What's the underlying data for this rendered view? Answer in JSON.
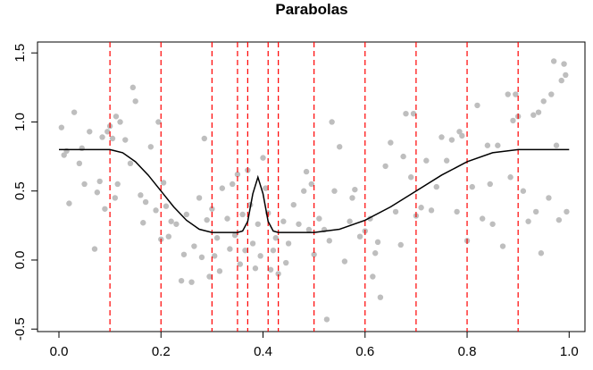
{
  "chart_data": {
    "type": "scatter",
    "title": "Parabolas",
    "xlim": [
      -0.042,
      1.031
    ],
    "ylim": [
      -0.518,
      1.579
    ],
    "xticks": [
      {
        "value": 0,
        "label": "0.0"
      },
      {
        "value": 0.2,
        "label": "0.2"
      },
      {
        "value": 0.4,
        "label": "0.4"
      },
      {
        "value": 0.6,
        "label": "0.6"
      },
      {
        "value": 0.8,
        "label": "0.8"
      },
      {
        "value": 1,
        "label": "1.0"
      }
    ],
    "yticks": [
      -0.5,
      {
        "value": 0,
        "label": "0.0"
      },
      0.5,
      {
        "value": 1,
        "label": "1.0"
      },
      1.5
    ],
    "vlines": {
      "x": [
        0.1,
        0.2,
        0.3,
        0.35,
        0.37,
        0.41,
        0.43,
        0.5,
        0.6,
        0.7,
        0.8,
        0.9
      ],
      "color": "#ff0000"
    },
    "series": [
      {
        "kind": "points",
        "color": "#bebebe",
        "x": [
          0.005,
          0.01,
          0.015,
          0.02,
          0.03,
          0.04,
          0.045,
          0.05,
          0.06,
          0.07,
          0.075,
          0.08,
          0.085,
          0.09,
          0.095,
          0.1,
          0.105,
          0.11,
          0.112,
          0.115,
          0.12,
          0.13,
          0.14,
          0.145,
          0.15,
          0.16,
          0.165,
          0.17,
          0.18,
          0.19,
          0.195,
          0.2,
          0.205,
          0.21,
          0.215,
          0.22,
          0.23,
          0.24,
          0.245,
          0.25,
          0.26,
          0.265,
          0.275,
          0.28,
          0.285,
          0.29,
          0.295,
          0.3,
          0.305,
          0.31,
          0.315,
          0.32,
          0.33,
          0.335,
          0.34,
          0.345,
          0.35,
          0.355,
          0.36,
          0.365,
          0.37,
          0.375,
          0.38,
          0.385,
          0.39,
          0.395,
          0.4,
          0.405,
          0.41,
          0.415,
          0.42,
          0.425,
          0.43,
          0.44,
          0.445,
          0.45,
          0.46,
          0.47,
          0.48,
          0.485,
          0.49,
          0.495,
          0.5,
          0.51,
          0.52,
          0.525,
          0.53,
          0.535,
          0.54,
          0.55,
          0.56,
          0.57,
          0.575,
          0.58,
          0.59,
          0.6,
          0.61,
          0.615,
          0.62,
          0.625,
          0.63,
          0.64,
          0.65,
          0.66,
          0.67,
          0.675,
          0.68,
          0.69,
          0.695,
          0.7,
          0.71,
          0.72,
          0.73,
          0.74,
          0.75,
          0.76,
          0.77,
          0.78,
          0.785,
          0.79,
          0.8,
          0.81,
          0.82,
          0.83,
          0.84,
          0.845,
          0.85,
          0.86,
          0.87,
          0.88,
          0.885,
          0.89,
          0.895,
          0.9,
          0.91,
          0.92,
          0.93,
          0.935,
          0.94,
          0.945,
          0.95,
          0.96,
          0.965,
          0.97,
          0.975,
          0.98,
          0.985,
          0.99,
          0.995,
          0.993
        ],
        "y": [
          0.96,
          0.76,
          0.79,
          0.41,
          1.07,
          0.7,
          0.81,
          0.55,
          0.93,
          0.08,
          0.49,
          0.57,
          0.89,
          0.37,
          0.93,
          0.97,
          0.88,
          0.45,
          1.04,
          0.55,
          1.0,
          0.87,
          0.7,
          1.25,
          1.15,
          0.47,
          0.27,
          0.42,
          0.82,
          0.36,
          1.0,
          0.15,
          0.56,
          0.39,
          0.17,
          0.28,
          0.26,
          -0.15,
          0.04,
          0.33,
          -0.16,
          0.1,
          0.45,
          0.02,
          0.88,
          0.29,
          -0.12,
          0.37,
          0.03,
          0.16,
          -0.08,
          0.52,
          0.3,
          0.08,
          0.55,
          0.18,
          0.62,
          -0.03,
          0.33,
          0.07,
          0.65,
          0.4,
          0.12,
          -0.06,
          0.26,
          0.03,
          0.74,
          0.52,
          0.34,
          -0.07,
          0.07,
          0.16,
          -0.1,
          0.28,
          -0.02,
          0.12,
          0.4,
          0.26,
          0.5,
          0.64,
          0.22,
          0.55,
          0.04,
          0.3,
          0.22,
          -0.43,
          0.14,
          1.0,
          0.5,
          0.82,
          -0.01,
          0.28,
          0.45,
          0.51,
          0.17,
          0.21,
          0.3,
          -0.12,
          0.05,
          0.13,
          -0.27,
          0.68,
          0.85,
          0.35,
          0.11,
          0.75,
          1.06,
          0.6,
          1.06,
          0.32,
          0.38,
          0.72,
          0.36,
          0.53,
          0.89,
          0.72,
          0.87,
          0.35,
          0.93,
          0.9,
          0.14,
          0.53,
          1.12,
          0.3,
          0.83,
          0.55,
          0.26,
          0.83,
          0.1,
          1.2,
          0.6,
          1.01,
          1.2,
          1.04,
          0.5,
          0.28,
          1.05,
          0.35,
          1.07,
          0.05,
          1.15,
          0.45,
          1.2,
          1.44,
          0.83,
          0.29,
          1.3,
          1.42,
          0.35,
          1.34
        ]
      },
      {
        "kind": "curve",
        "color": "#000000",
        "x": [
          0,
          0.1,
          0.125,
          0.15,
          0.175,
          0.2,
          0.225,
          0.25,
          0.275,
          0.3,
          0.35,
          0.36,
          0.37,
          0.38,
          0.39,
          0.4,
          0.41,
          0.42,
          0.43,
          0.5,
          0.55,
          0.6,
          0.65,
          0.7,
          0.75,
          0.8,
          0.85,
          0.9,
          1.0
        ],
        "y": [
          0.8,
          0.8,
          0.777,
          0.712,
          0.615,
          0.5,
          0.385,
          0.288,
          0.223,
          0.2,
          0.2,
          0.21,
          0.28,
          0.48,
          0.6,
          0.48,
          0.28,
          0.21,
          0.2,
          0.2,
          0.223,
          0.288,
          0.385,
          0.5,
          0.615,
          0.712,
          0.777,
          0.8,
          0.8
        ]
      }
    ]
  }
}
